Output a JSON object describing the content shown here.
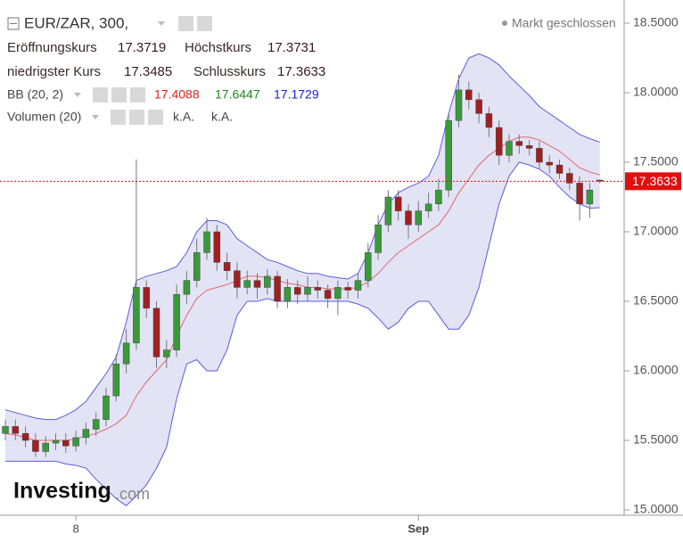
{
  "chart_data": {
    "type": "candlestick",
    "title": "EUR/ZAR, 300,",
    "status": "Markt geschlossen",
    "logo": {
      "main": "Investing",
      "suffix": ".com"
    },
    "labels": {
      "open": "Eröffnungskurs",
      "high": "Höchstkurs",
      "low": "niedrigster Kurs",
      "close": "Schlusskurs",
      "bb": "BB (20, 2)",
      "volume": "Volumen (20)",
      "volume_values": [
        "k.A.",
        "k.A."
      ]
    },
    "up_color": "#3a9a3a",
    "down_color": "#a02020",
    "bb_colors": {
      "upper": "#5a5ae0",
      "middle": "#e06868",
      "lower": "#5a5ae0",
      "fill": "#dcdcf4"
    },
    "last_price_color": "#e01010",
    "categories": [
      null,
      null,
      null,
      null,
      null,
      null,
      null,
      "8",
      null,
      null,
      null,
      null,
      null,
      null,
      null,
      null,
      null,
      null,
      null,
      null,
      null,
      null,
      null,
      null,
      null,
      null,
      null,
      null,
      null,
      null,
      null,
      null,
      null,
      null,
      null,
      null,
      null,
      null,
      null,
      null,
      null,
      "Sep",
      null,
      null,
      null,
      null,
      null,
      null,
      null,
      null,
      null,
      null,
      null,
      null,
      null,
      null,
      null,
      null,
      null,
      null
    ],
    "open": [
      15.55,
      15.6,
      15.55,
      15.5,
      15.42,
      15.48,
      15.5,
      15.46,
      15.52,
      15.58,
      15.65,
      15.82,
      16.05,
      16.2,
      16.6,
      16.45,
      16.1,
      16.15,
      16.55,
      16.65,
      16.85,
      17.0,
      16.78,
      16.72,
      16.6,
      16.65,
      16.6,
      16.68,
      16.5,
      16.6,
      16.55,
      16.6,
      16.58,
      16.52,
      16.6,
      16.58,
      16.65,
      16.85,
      17.05,
      17.25,
      17.15,
      17.05,
      17.15,
      17.2,
      17.3,
      17.8,
      18.02,
      17.95,
      17.85,
      17.75,
      17.55,
      17.65,
      17.62,
      17.6,
      17.5,
      17.48,
      17.42,
      17.35,
      17.2,
      17.3719
    ],
    "high": [
      15.65,
      15.65,
      15.6,
      15.55,
      15.53,
      15.55,
      15.55,
      15.57,
      15.63,
      15.7,
      15.88,
      16.12,
      16.3,
      17.52,
      16.65,
      16.5,
      16.22,
      16.62,
      16.72,
      16.95,
      17.1,
      17.05,
      16.85,
      16.78,
      16.72,
      16.7,
      16.73,
      16.72,
      16.66,
      16.65,
      16.68,
      16.65,
      16.62,
      16.65,
      16.64,
      16.7,
      16.92,
      17.12,
      17.3,
      17.3,
      17.2,
      17.22,
      17.28,
      17.38,
      17.85,
      18.13,
      18.08,
      18.0,
      17.9,
      17.8,
      17.7,
      17.7,
      17.66,
      17.65,
      17.55,
      17.52,
      17.46,
      17.4,
      17.35,
      17.3731
    ],
    "low": [
      15.5,
      15.5,
      15.45,
      15.38,
      15.38,
      15.43,
      15.41,
      15.42,
      15.47,
      15.53,
      15.6,
      15.78,
      15.98,
      16.15,
      16.38,
      16.02,
      16.02,
      16.1,
      16.48,
      16.6,
      16.8,
      16.72,
      16.65,
      16.52,
      16.55,
      16.52,
      16.55,
      16.45,
      16.45,
      16.48,
      16.5,
      16.52,
      16.45,
      16.4,
      16.52,
      16.52,
      16.6,
      16.8,
      17.0,
      17.08,
      16.95,
      17.0,
      17.1,
      17.15,
      17.25,
      17.75,
      17.88,
      17.78,
      17.68,
      17.48,
      17.5,
      17.56,
      17.55,
      17.45,
      17.42,
      17.38,
      17.3,
      17.08,
      17.1,
      17.3485
    ],
    "close": [
      15.6,
      15.55,
      15.5,
      15.42,
      15.48,
      15.5,
      15.46,
      15.52,
      15.58,
      15.65,
      15.82,
      16.05,
      16.2,
      16.6,
      16.45,
      16.1,
      16.15,
      16.55,
      16.65,
      16.85,
      17.0,
      16.78,
      16.72,
      16.6,
      16.65,
      16.6,
      16.68,
      16.5,
      16.6,
      16.55,
      16.6,
      16.58,
      16.52,
      16.6,
      16.58,
      16.65,
      16.85,
      17.05,
      17.25,
      17.15,
      17.05,
      17.15,
      17.2,
      17.3,
      17.8,
      18.02,
      17.95,
      17.85,
      17.75,
      17.55,
      17.65,
      17.62,
      17.6,
      17.5,
      17.48,
      17.42,
      17.35,
      17.2,
      17.3,
      17.3633
    ],
    "bb": {
      "upper": [
        15.72,
        15.7,
        15.68,
        15.66,
        15.65,
        15.65,
        15.68,
        15.72,
        15.78,
        15.88,
        15.98,
        16.1,
        16.35,
        16.65,
        16.68,
        16.7,
        16.72,
        16.75,
        16.85,
        17.0,
        17.08,
        17.08,
        17.05,
        16.95,
        16.9,
        16.85,
        16.8,
        16.78,
        16.75,
        16.72,
        16.7,
        16.7,
        16.68,
        16.67,
        16.66,
        16.7,
        16.85,
        17.05,
        17.2,
        17.28,
        17.32,
        17.35,
        17.4,
        17.55,
        17.85,
        18.1,
        18.25,
        18.28,
        18.25,
        18.2,
        18.12,
        18.05,
        17.98,
        17.9,
        17.85,
        17.8,
        17.75,
        17.7,
        17.67,
        17.6447
      ],
      "middle": [
        15.55,
        15.54,
        15.52,
        15.5,
        15.5,
        15.5,
        15.5,
        15.51,
        15.53,
        15.55,
        15.58,
        15.62,
        15.68,
        15.82,
        15.92,
        16.0,
        16.08,
        16.25,
        16.4,
        16.52,
        16.58,
        16.6,
        16.62,
        16.65,
        16.68,
        16.68,
        16.67,
        16.65,
        16.63,
        16.62,
        16.6,
        16.6,
        16.59,
        16.59,
        16.59,
        16.6,
        16.64,
        16.7,
        16.78,
        16.85,
        16.9,
        16.95,
        17.0,
        17.05,
        17.15,
        17.28,
        17.38,
        17.48,
        17.55,
        17.6,
        17.65,
        17.68,
        17.68,
        17.66,
        17.62,
        17.58,
        17.52,
        17.46,
        17.43,
        17.4088
      ],
      "lower": [
        15.35,
        15.35,
        15.35,
        15.35,
        15.35,
        15.35,
        15.33,
        15.32,
        15.3,
        15.22,
        15.15,
        15.08,
        15.03,
        15.1,
        15.18,
        15.3,
        15.45,
        15.8,
        16.05,
        16.08,
        16.0,
        16.0,
        16.15,
        16.4,
        16.5,
        16.5,
        16.52,
        16.5,
        16.5,
        16.5,
        16.5,
        16.5,
        16.5,
        16.5,
        16.5,
        16.48,
        16.45,
        16.38,
        16.3,
        16.35,
        16.45,
        16.5,
        16.5,
        16.4,
        16.3,
        16.3,
        16.4,
        16.6,
        16.9,
        17.2,
        17.4,
        17.5,
        17.48,
        17.45,
        17.4,
        17.32,
        17.25,
        17.2,
        17.17,
        17.1729
      ]
    },
    "ylim": [
      15.0,
      18.5
    ],
    "yticks": [
      {
        "value": 15,
        "label": "15.0000"
      },
      {
        "value": 15.5,
        "label": "15.5000"
      },
      {
        "value": 16,
        "label": "16.0000"
      },
      {
        "value": 16.5,
        "label": "16.5000"
      },
      {
        "value": 17,
        "label": "17.0000"
      },
      {
        "value": 17.5,
        "label": "17.5000"
      },
      {
        "value": 18,
        "label": "18.0000"
      },
      {
        "value": 18.5,
        "label": "18.5000"
      }
    ],
    "grid": false
  }
}
